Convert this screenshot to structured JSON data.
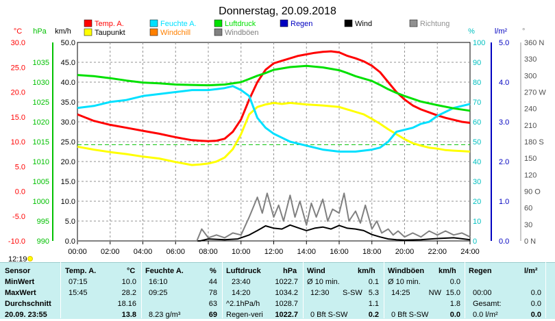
{
  "chart_data": {
    "type": "line",
    "title": "Donnerstag, 20.09.2018",
    "x": {
      "ticks": [
        "00:00",
        "02:00",
        "04:00",
        "06:00",
        "08:00",
        "10:00",
        "12:00",
        "14:00",
        "16:00",
        "18:00",
        "20:00",
        "22:00",
        "24:00"
      ],
      "range_hours": [
        0,
        24
      ]
    },
    "axes": {
      "temp_c": {
        "label": "°C",
        "ticks": [
          "30.0",
          "25.0",
          "20.0",
          "15.0",
          "10.0",
          "5.0",
          "0.0",
          "-5.0",
          "-10.0"
        ],
        "range": [
          -10,
          30
        ],
        "color": "#ff0000"
      },
      "pressure": {
        "label": "hPa",
        "ticks": [
          "1035",
          "1030",
          "1025",
          "1020",
          "1015",
          "1010",
          "1005",
          "1000",
          "995",
          "990"
        ],
        "range": [
          990,
          1040
        ],
        "color": "#00c000"
      },
      "wind_kmh": {
        "label": "km/h",
        "ticks": [
          "50.0",
          "45.0",
          "40.0",
          "35.0",
          "30.0",
          "25.0",
          "20.0",
          "15.0",
          "10.0",
          "5.0",
          "0.0"
        ],
        "range": [
          0,
          50
        ],
        "color": "#000000"
      },
      "humidity": {
        "label": "%",
        "ticks": [
          "100",
          "90",
          "80",
          "70",
          "60",
          "50",
          "40",
          "30",
          "20",
          "10",
          "0"
        ],
        "range": [
          0,
          100
        ],
        "color": "#00c0c0"
      },
      "rain": {
        "label": "l/m²",
        "ticks": [
          "5.0",
          "4.0",
          "3.0",
          "2.0",
          "1.0",
          "0.0"
        ],
        "range": [
          0,
          5
        ],
        "color": "#0000c0"
      },
      "direction": {
        "label": "°",
        "ticks": [
          "360 N",
          "330",
          "300",
          "270 W",
          "240",
          "210",
          "180 S",
          "150",
          "120",
          "90 O",
          "60",
          "30",
          "0 N"
        ],
        "range": [
          0,
          360
        ],
        "color": "#808080"
      }
    },
    "legend": [
      {
        "name": "Temp. A.",
        "color": "#ff0000"
      },
      {
        "name": "Feuchte A.",
        "color": "#00e0ff"
      },
      {
        "name": "Luftdruck",
        "color": "#00e000"
      },
      {
        "name": "Regen",
        "color": "#0000c0"
      },
      {
        "name": "Wind",
        "color": "#000000"
      },
      {
        "name": "Richtung",
        "color": "#909090"
      },
      {
        "name": "Taupunkt",
        "color": "#ffff00"
      },
      {
        "name": "Windchill",
        "color": "#ff8000"
      },
      {
        "name": "Windböen",
        "color": "#808080"
      }
    ],
    "series": [
      {
        "name": "Temp. A.",
        "axis": "temp_c",
        "color": "#ff0000",
        "x": [
          0,
          1,
          2,
          3,
          4,
          5,
          6,
          6.5,
          7,
          7.5,
          8,
          8.5,
          9,
          9.5,
          10,
          10.5,
          11,
          11.5,
          12,
          12.5,
          13,
          13.5,
          14,
          14.5,
          15,
          15.5,
          16,
          16.5,
          17,
          17.5,
          18,
          18.5,
          19,
          19.5,
          20,
          20.5,
          21,
          21.5,
          22,
          22.5,
          23,
          23.5,
          24
        ],
        "y": [
          15.5,
          14.2,
          13.4,
          12.8,
          12.2,
          11.6,
          10.9,
          10.6,
          10.3,
          10.2,
          10.1,
          10.2,
          10.6,
          12.0,
          14.5,
          18.5,
          22.0,
          24.5,
          25.8,
          26.3,
          26.8,
          27.3,
          27.6,
          27.9,
          28.1,
          28.2,
          28.0,
          27.3,
          26.8,
          26.2,
          25.3,
          24.0,
          22.0,
          20.0,
          18.5,
          17.3,
          16.5,
          15.9,
          15.3,
          14.8,
          14.4,
          14.0,
          13.8
        ]
      },
      {
        "name": "Taupunkt",
        "axis": "temp_c",
        "color": "#ffff00",
        "x": [
          0,
          1,
          2,
          3,
          4,
          5,
          6,
          6.5,
          7,
          7.5,
          8,
          8.5,
          9,
          9.5,
          10,
          10.5,
          11,
          11.5,
          12,
          12.5,
          13,
          14,
          15,
          16,
          16.5,
          17,
          17.5,
          18,
          18.5,
          19,
          19.5,
          20,
          20.5,
          21,
          21.5,
          22,
          22.5,
          23,
          23.5,
          24
        ],
        "y": [
          9.0,
          8.4,
          7.9,
          7.5,
          7.0,
          6.6,
          5.9,
          5.6,
          5.3,
          5.4,
          5.6,
          6.0,
          6.8,
          8.5,
          11.5,
          15.5,
          17.0,
          17.5,
          17.8,
          17.6,
          17.8,
          17.5,
          17.3,
          17.0,
          16.5,
          16.0,
          15.5,
          14.6,
          13.6,
          12.5,
          11.5,
          10.5,
          9.7,
          9.2,
          8.8,
          8.6,
          8.3,
          8.2,
          8.1,
          8.0
        ]
      },
      {
        "name": "Feuchte A.",
        "axis": "humidity",
        "color": "#00e0ff",
        "x": [
          0,
          1,
          2,
          3,
          4,
          5,
          6,
          7,
          8,
          8.5,
          9,
          9.5,
          10,
          10.5,
          11,
          11.5,
          12,
          12.5,
          13,
          14,
          15,
          16,
          17,
          18,
          18.5,
          19,
          19.5,
          20,
          20.5,
          21,
          21.5,
          22,
          22.5,
          23,
          23.5,
          24
        ],
        "y": [
          67,
          68,
          70,
          71,
          73,
          74,
          75,
          76,
          76,
          76.5,
          77,
          78,
          76,
          73,
          62,
          57,
          54,
          52,
          50,
          48,
          46,
          45,
          45,
          46,
          47,
          50,
          55,
          56,
          57,
          59,
          60,
          63,
          65,
          67,
          68,
          69
        ]
      },
      {
        "name": "Luftdruck",
        "axis": "pressure",
        "color": "#00e000",
        "x": [
          0,
          1,
          2,
          3,
          4,
          5,
          6,
          7,
          8,
          9,
          10,
          10.5,
          11,
          11.5,
          12,
          13,
          14,
          15,
          16,
          16.5,
          17,
          17.5,
          18,
          18.5,
          19,
          19.5,
          20,
          21,
          22,
          23,
          24
        ],
        "y": [
          1031.8,
          1031.5,
          1031.0,
          1030.4,
          1029.9,
          1029.7,
          1029.4,
          1029.3,
          1029.2,
          1029.4,
          1030.0,
          1030.8,
          1031.6,
          1032.3,
          1033.1,
          1033.8,
          1034.1,
          1033.7,
          1033.0,
          1032.3,
          1031.5,
          1030.9,
          1030.3,
          1029.3,
          1028.2,
          1027.3,
          1026.5,
          1025.1,
          1024.2,
          1023.4,
          1022.8
        ]
      },
      {
        "name": "Wind",
        "axis": "wind_kmh",
        "color": "#000000",
        "x": [
          0,
          7.5,
          8,
          9,
          9.8,
          10.5,
          11,
          11.5,
          12,
          12.5,
          13,
          13.5,
          14,
          14.5,
          15,
          15.5,
          16,
          16.5,
          17,
          17.5,
          18,
          18.5,
          19,
          19.5,
          20,
          21,
          22,
          23,
          24
        ],
        "y": [
          0,
          0,
          0.5,
          0.3,
          0.5,
          1.5,
          2.6,
          3.8,
          3.2,
          3.0,
          4.0,
          3.3,
          2.6,
          3.2,
          3.5,
          3.0,
          3.9,
          3.2,
          3.0,
          2.6,
          1.6,
          1.0,
          0.5,
          0.3,
          0.2,
          0.3,
          0.6,
          0.8,
          0.3
        ]
      },
      {
        "name": "Windböen",
        "axis": "wind_kmh",
        "color": "#808080",
        "x": [
          0,
          7.3,
          7.6,
          8,
          8.5,
          9,
          9.5,
          10,
          10.5,
          11,
          11.3,
          11.6,
          12,
          12.3,
          12.6,
          13,
          13.3,
          13.6,
          14,
          14.3,
          14.6,
          15,
          15.3,
          15.6,
          16,
          16.3,
          16.6,
          17,
          17.3,
          17.6,
          18,
          18.3,
          18.6,
          19,
          19.3,
          19.6,
          20,
          20.5,
          21,
          21.5,
          22,
          22.5,
          23,
          23.5,
          24
        ],
        "y": [
          0,
          0,
          3.0,
          0.8,
          1.5,
          0.8,
          2.0,
          1.5,
          6.0,
          11.0,
          7.0,
          12.0,
          6.0,
          9.0,
          5.0,
          11.5,
          6.0,
          10.0,
          4.0,
          9.5,
          6.0,
          10.5,
          5.0,
          8.0,
          7.0,
          12.0,
          5.0,
          7.5,
          4.5,
          9.0,
          3.0,
          5.0,
          2.0,
          3.0,
          1.5,
          2.5,
          1.0,
          2.0,
          1.0,
          2.5,
          1.5,
          2.5,
          1.5,
          2.0,
          1.0
        ]
      }
    ],
    "reference_line": {
      "axis": "temp_c",
      "value": 9.4,
      "color": "#00c000",
      "style": "dashed"
    }
  },
  "clock": "12:19",
  "summary_table": {
    "headers": {
      "sensor": "Sensor",
      "temp": "Temp. A.",
      "temp_unit": "°C",
      "hum": "Feuchte A.",
      "hum_unit": "%",
      "press": "Luftdruck",
      "press_unit": "hPa",
      "wind": "Wind",
      "wind_unit": "km/h",
      "gust": "Windböen",
      "gust_unit": "km/h",
      "rain": "Regen",
      "rain_unit": "l/m²"
    },
    "rows": [
      {
        "label": "MinWert",
        "temp_t": "07:15",
        "temp_v": "10.0",
        "hum_t": "16:10",
        "hum_v": "44",
        "press_t": "23:40",
        "press_v": "1022.7",
        "wind_t": "Ø 10 min.",
        "wind_d": "",
        "wind_v": "0.1",
        "gust_t": "Ø 10 min.",
        "gust_d": "",
        "gust_v": "0.0",
        "rain_t": "",
        "rain_v": ""
      },
      {
        "label": "MaxWert",
        "temp_t": "15:45",
        "temp_v": "28.2",
        "hum_t": "09:25",
        "hum_v": "78",
        "press_t": "14:20",
        "press_v": "1034.2",
        "wind_t": "12:30",
        "wind_d": "S-SW",
        "wind_v": "5.3",
        "gust_t": "14:25",
        "gust_d": "NW",
        "gust_v": "15.0",
        "rain_t": "00:00",
        "rain_v": "0.0"
      },
      {
        "label": "Durchschnitt",
        "temp_t": "",
        "temp_v": "18.16",
        "hum_t": "",
        "hum_v": "63",
        "press_t": "^2.1hPa/h",
        "press_v": "1028.7",
        "wind_t": "",
        "wind_d": "",
        "wind_v": "1.1",
        "gust_t": "",
        "gust_d": "",
        "gust_v": "1.8",
        "rain_t": "Gesamt:",
        "rain_v": "0.0"
      },
      {
        "label": "20.09. 23:55",
        "temp_t": "",
        "temp_v": "13.8",
        "hum_t": "8.23 g/m³",
        "hum_v": "69",
        "press_t": "Regen-veri",
        "press_v": "1022.7",
        "wind_t": "0 Bft S-SW",
        "wind_d": "",
        "wind_v": "0.2",
        "gust_t": "0 Bft S-SW",
        "gust_d": "",
        "gust_v": "0.0",
        "rain_t": "0.0 l/m²",
        "rain_v": "0.0"
      }
    ]
  }
}
